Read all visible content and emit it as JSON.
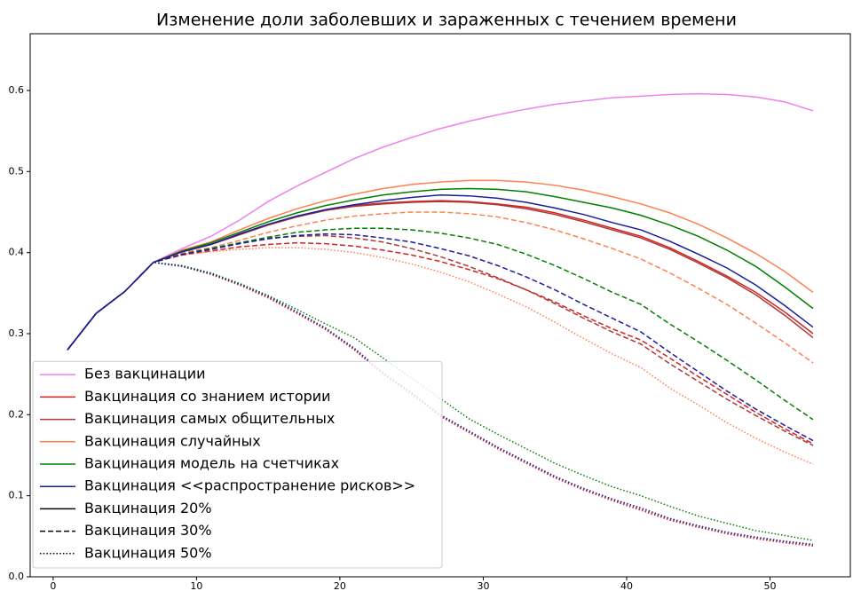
{
  "chart_data": {
    "type": "line",
    "title": "Изменение доли заболевших и зараженных с течением времени",
    "x": [
      1,
      3,
      5,
      7,
      9,
      11,
      13,
      15,
      17,
      19,
      21,
      23,
      25,
      27,
      29,
      31,
      33,
      35,
      37,
      39,
      41,
      43,
      45,
      47,
      49,
      51,
      53
    ],
    "xlim": [
      -1.6,
      55.6
    ],
    "xticks": [
      0,
      10,
      20,
      30,
      40,
      50
    ],
    "ylim": [
      0,
      0.67
    ],
    "yticks": [
      {
        "value": 0,
        "label": "0.0"
      },
      0.1,
      0.2,
      0.3,
      0.4,
      0.5,
      0.6
    ],
    "legend": "lower left",
    "series": [
      {
        "name": "Без вакцинации",
        "color": "violet",
        "values": [
          0.28,
          0.325,
          0.352,
          0.388,
          0.405,
          0.42,
          0.44,
          0.463,
          0.482,
          0.499,
          0.516,
          0.53,
          0.542,
          0.553,
          0.562,
          0.57,
          0.577,
          0.583,
          0.587,
          0.591,
          0.593,
          0.595,
          0.596,
          0.595,
          0.592,
          0.586,
          0.575
        ]
      },
      {
        "name": "Вакцинация со знанием истории",
        "color": "#d62020",
        "levels": [
          [
            0.28,
            0.325,
            0.352,
            0.388,
            0.401,
            0.41,
            0.422,
            0.434,
            0.444,
            0.452,
            0.458,
            0.461,
            0.463,
            0.464,
            0.463,
            0.46,
            0.456,
            0.449,
            0.44,
            0.43,
            0.42,
            0.406,
            0.389,
            0.371,
            0.351,
            0.327,
            0.3
          ],
          [
            0.28,
            0.325,
            0.352,
            0.388,
            0.397,
            0.402,
            0.407,
            0.41,
            0.412,
            0.411,
            0.408,
            0.403,
            0.397,
            0.389,
            0.379,
            0.368,
            0.354,
            0.339,
            0.322,
            0.306,
            0.292,
            0.27,
            0.247,
            0.225,
            0.203,
            0.183,
            0.164
          ],
          [
            0.28,
            0.325,
            0.352,
            0.388,
            0.383,
            0.373,
            0.36,
            0.344,
            0.325,
            0.305,
            0.28,
            0.25,
            0.225,
            0.198,
            0.178,
            0.158,
            0.14,
            0.122,
            0.107,
            0.094,
            0.082,
            0.07,
            0.061,
            0.053,
            0.047,
            0.042,
            0.038
          ]
        ]
      },
      {
        "name": "Вакцинация самых общительных",
        "color": "#a83a3a",
        "levels": [
          [
            0.28,
            0.325,
            0.352,
            0.388,
            0.401,
            0.41,
            0.422,
            0.434,
            0.444,
            0.452,
            0.457,
            0.46,
            0.462,
            0.463,
            0.462,
            0.459,
            0.454,
            0.447,
            0.438,
            0.428,
            0.418,
            0.404,
            0.387,
            0.369,
            0.348,
            0.323,
            0.295
          ],
          [
            0.28,
            0.325,
            0.352,
            0.388,
            0.398,
            0.404,
            0.412,
            0.418,
            0.42,
            0.421,
            0.418,
            0.413,
            0.405,
            0.395,
            0.383,
            0.369,
            0.354,
            0.337,
            0.319,
            0.302,
            0.287,
            0.263,
            0.241,
            0.219,
            0.199,
            0.18,
            0.162
          ],
          [
            0.28,
            0.325,
            0.352,
            0.388,
            0.383,
            0.374,
            0.361,
            0.345,
            0.326,
            0.306,
            0.281,
            0.251,
            0.226,
            0.199,
            0.179,
            0.159,
            0.141,
            0.123,
            0.108,
            0.095,
            0.083,
            0.071,
            0.062,
            0.054,
            0.048,
            0.043,
            0.039
          ]
        ]
      },
      {
        "name": "Вакцинация случайных",
        "color": "coral",
        "levels": [
          [
            0.28,
            0.325,
            0.352,
            0.388,
            0.403,
            0.413,
            0.428,
            0.442,
            0.454,
            0.464,
            0.472,
            0.479,
            0.484,
            0.487,
            0.489,
            0.489,
            0.487,
            0.483,
            0.477,
            0.469,
            0.46,
            0.449,
            0.435,
            0.418,
            0.399,
            0.377,
            0.351
          ],
          [
            0.28,
            0.325,
            0.352,
            0.388,
            0.4,
            0.406,
            0.415,
            0.425,
            0.433,
            0.44,
            0.445,
            0.448,
            0.45,
            0.45,
            0.448,
            0.444,
            0.437,
            0.428,
            0.417,
            0.405,
            0.392,
            0.375,
            0.356,
            0.336,
            0.313,
            0.289,
            0.264
          ],
          [
            0.28,
            0.325,
            0.352,
            0.388,
            0.398,
            0.401,
            0.404,
            0.406,
            0.406,
            0.404,
            0.4,
            0.394,
            0.386,
            0.376,
            0.364,
            0.349,
            0.333,
            0.314,
            0.294,
            0.275,
            0.258,
            0.233,
            0.212,
            0.19,
            0.171,
            0.154,
            0.139
          ]
        ]
      },
      {
        "name": "Вакцинация модель на счетчиках",
        "color": "green",
        "levels": [
          [
            0.28,
            0.325,
            0.352,
            0.388,
            0.402,
            0.412,
            0.425,
            0.438,
            0.449,
            0.458,
            0.465,
            0.471,
            0.475,
            0.478,
            0.479,
            0.478,
            0.475,
            0.469,
            0.462,
            0.455,
            0.446,
            0.434,
            0.42,
            0.403,
            0.383,
            0.358,
            0.331
          ],
          [
            0.28,
            0.325,
            0.352,
            0.388,
            0.398,
            0.405,
            0.412,
            0.419,
            0.425,
            0.428,
            0.43,
            0.43,
            0.428,
            0.424,
            0.418,
            0.41,
            0.398,
            0.384,
            0.368,
            0.351,
            0.336,
            0.312,
            0.29,
            0.267,
            0.243,
            0.218,
            0.194
          ],
          [
            0.28,
            0.325,
            0.352,
            0.388,
            0.384,
            0.375,
            0.362,
            0.347,
            0.33,
            0.312,
            0.295,
            0.27,
            0.245,
            0.22,
            0.195,
            0.176,
            0.158,
            0.14,
            0.125,
            0.111,
            0.1,
            0.087,
            0.075,
            0.066,
            0.057,
            0.051,
            0.045
          ]
        ]
      },
      {
        "name": "Вакцинация <<распространение рисков>>",
        "color": "#1c1c9c",
        "levels": [
          [
            0.28,
            0.325,
            0.352,
            0.388,
            0.401,
            0.41,
            0.423,
            0.435,
            0.445,
            0.453,
            0.459,
            0.464,
            0.468,
            0.471,
            0.47,
            0.467,
            0.462,
            0.455,
            0.447,
            0.437,
            0.428,
            0.414,
            0.398,
            0.381,
            0.36,
            0.335,
            0.308
          ],
          [
            0.28,
            0.325,
            0.352,
            0.388,
            0.398,
            0.404,
            0.411,
            0.417,
            0.421,
            0.423,
            0.422,
            0.418,
            0.413,
            0.405,
            0.396,
            0.384,
            0.37,
            0.354,
            0.336,
            0.319,
            0.302,
            0.277,
            0.253,
            0.229,
            0.207,
            0.187,
            0.168
          ],
          [
            0.28,
            0.325,
            0.352,
            0.388,
            0.383,
            0.374,
            0.361,
            0.346,
            0.327,
            0.307,
            0.282,
            0.252,
            0.227,
            0.2,
            0.18,
            0.16,
            0.142,
            0.124,
            0.109,
            0.096,
            0.085,
            0.072,
            0.063,
            0.055,
            0.049,
            0.044,
            0.04
          ]
        ]
      }
    ],
    "levels": [
      {
        "name": "Вакцинация 20%",
        "color": "black",
        "dash": "solid"
      },
      {
        "name": "Вакцинация 30%",
        "color": "black",
        "dash": "dashed"
      },
      {
        "name": "Вакцинация 50%",
        "color": "black",
        "dash": "dotted"
      }
    ]
  }
}
